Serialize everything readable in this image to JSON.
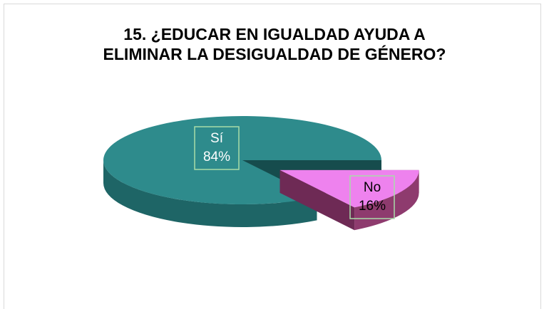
{
  "chart_data": {
    "type": "pie3d",
    "title": "15. ¿EDUCAR EN IGUALDAD AYUDA A ELIMINAR LA DESIGUALDAD DE GÉNERO?",
    "categories": [
      "Sí",
      "No"
    ],
    "values": [
      84,
      16
    ],
    "value_labels": [
      "84%",
      "16%"
    ],
    "colors": [
      "#2e8b8c",
      "#ee82ee"
    ],
    "side_colors": [
      "#1e6566",
      "#8e3b6e"
    ],
    "wall_colors": [
      "#164c4d",
      "#6e2a55"
    ],
    "label_colors": [
      "#ffffff",
      "#000000"
    ],
    "exploded": [
      false,
      true
    ]
  }
}
